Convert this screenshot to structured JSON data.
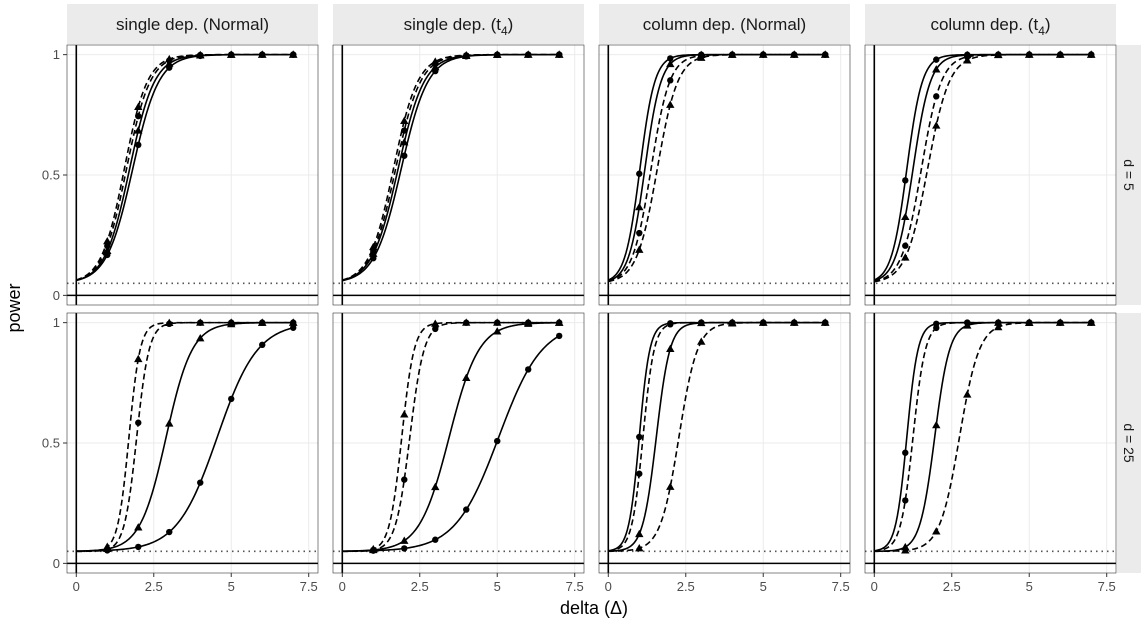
{
  "chart_data": {
    "type": "line",
    "xlabel": "delta (Δ)",
    "ylabel": "power",
    "xlim": [
      -0.3,
      7.8
    ],
    "ylim": [
      -0.04,
      1.04
    ],
    "x_ticks": [
      0,
      2.5,
      5,
      7.5
    ],
    "x_tick_labels": [
      "0",
      "2.5",
      "5",
      "7.5"
    ],
    "y_ticks": [
      0,
      0.5,
      1
    ],
    "y_tick_labels": [
      "0",
      "0.5",
      "1"
    ],
    "reference_level": 0.05,
    "grid": true,
    "column_facets": [
      {
        "prefix": "single dep. (Normal)",
        "sub": "",
        "suffix": ""
      },
      {
        "prefix": "single dep. (t",
        "sub": "4",
        "suffix": ")"
      },
      {
        "prefix": "column dep. (Normal)",
        "sub": "",
        "suffix": ""
      },
      {
        "prefix": "column dep. (t",
        "sub": "4",
        "suffix": ")"
      }
    ],
    "row_facets": [
      "d = 5",
      "d = 25"
    ],
    "marker_x": [
      1,
      2,
      3,
      4,
      5,
      6,
      7
    ],
    "panels": [
      {
        "row": 0,
        "col": 0,
        "series": [
          {
            "line": "solid",
            "marker": "circle",
            "mid": 1.82,
            "width": 0.42
          },
          {
            "line": "solid",
            "marker": "triangle",
            "mid": 1.72,
            "width": 0.4
          },
          {
            "line": "dashed",
            "marker": "circle",
            "mid": 1.62,
            "width": 0.38
          },
          {
            "line": "dashed",
            "marker": "triangle",
            "mid": 1.55,
            "width": 0.37
          }
        ]
      },
      {
        "row": 0,
        "col": 1,
        "series": [
          {
            "line": "solid",
            "marker": "circle",
            "mid": 1.9,
            "width": 0.43
          },
          {
            "line": "solid",
            "marker": "triangle",
            "mid": 1.8,
            "width": 0.42
          },
          {
            "line": "dashed",
            "marker": "circle",
            "mid": 1.72,
            "width": 0.4
          },
          {
            "line": "dashed",
            "marker": "triangle",
            "mid": 1.65,
            "width": 0.39
          }
        ]
      },
      {
        "row": 0,
        "col": 2,
        "series": [
          {
            "line": "solid",
            "marker": "circle",
            "mid": 1.02,
            "width": 0.24
          },
          {
            "line": "solid",
            "marker": "triangle",
            "mid": 1.18,
            "width": 0.26
          },
          {
            "line": "dashed",
            "marker": "circle",
            "mid": 1.38,
            "width": 0.3
          },
          {
            "line": "dashed",
            "marker": "triangle",
            "mid": 1.58,
            "width": 0.33
          }
        ]
      },
      {
        "row": 0,
        "col": 3,
        "series": [
          {
            "line": "solid",
            "marker": "circle",
            "mid": 1.05,
            "width": 0.25
          },
          {
            "line": "solid",
            "marker": "triangle",
            "mid": 1.25,
            "width": 0.28
          },
          {
            "line": "dashed",
            "marker": "circle",
            "mid": 1.52,
            "width": 0.32
          },
          {
            "line": "dashed",
            "marker": "triangle",
            "mid": 1.72,
            "width": 0.35
          }
        ]
      },
      {
        "row": 1,
        "col": 0,
        "series": [
          {
            "line": "solid",
            "marker": "circle",
            "mid": 4.55,
            "width": 0.65
          },
          {
            "line": "solid",
            "marker": "triangle",
            "mid": 2.9,
            "width": 0.42
          },
          {
            "line": "dashed",
            "marker": "circle",
            "mid": 1.95,
            "width": 0.2
          },
          {
            "line": "dashed",
            "marker": "triangle",
            "mid": 1.7,
            "width": 0.18
          }
        ]
      },
      {
        "row": 1,
        "col": 1,
        "series": [
          {
            "line": "solid",
            "marker": "circle",
            "mid": 5.05,
            "width": 0.7
          },
          {
            "line": "solid",
            "marker": "triangle",
            "mid": 3.45,
            "width": 0.48
          },
          {
            "line": "dashed",
            "marker": "circle",
            "mid": 2.18,
            "width": 0.23
          },
          {
            "line": "dashed",
            "marker": "triangle",
            "mid": 1.92,
            "width": 0.2
          }
        ]
      },
      {
        "row": 1,
        "col": 2,
        "series": [
          {
            "line": "solid",
            "marker": "circle",
            "mid": 1.0,
            "width": 0.17
          },
          {
            "line": "solid",
            "marker": "triangle",
            "mid": 1.55,
            "width": 0.22
          },
          {
            "line": "dashed",
            "marker": "circle",
            "mid": 1.12,
            "width": 0.18
          },
          {
            "line": "dashed",
            "marker": "triangle",
            "mid": 2.28,
            "width": 0.3
          }
        ]
      },
      {
        "row": 1,
        "col": 3,
        "series": [
          {
            "line": "solid",
            "marker": "circle",
            "mid": 1.05,
            "width": 0.18
          },
          {
            "line": "solid",
            "marker": "triangle",
            "mid": 1.95,
            "width": 0.24
          },
          {
            "line": "dashed",
            "marker": "circle",
            "mid": 1.25,
            "width": 0.2
          },
          {
            "line": "dashed",
            "marker": "triangle",
            "mid": 2.75,
            "width": 0.32
          }
        ]
      }
    ]
  }
}
